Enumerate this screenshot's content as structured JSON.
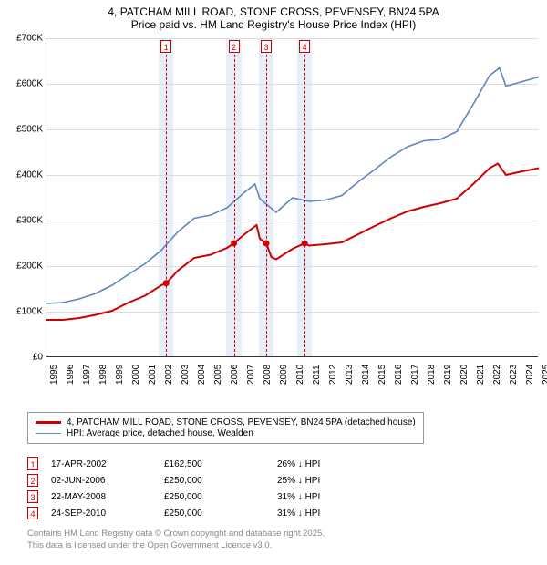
{
  "title_line1": "4, PATCHAM MILL ROAD, STONE CROSS, PEVENSEY, BN24 5PA",
  "title_line2": "Price paid vs. HM Land Registry's House Price Index (HPI)",
  "chart": {
    "type": "line",
    "background_color": "#ffffff",
    "grid_color": "#dddddd",
    "band_color": "#e8eef8",
    "x_axis": {
      "min": 1995,
      "max": 2025,
      "tick_step": 1,
      "label_fontsize": 10
    },
    "y_axis": {
      "min": 0,
      "max": 700000,
      "tick_step": 100000,
      "tick_labels": [
        "£0",
        "£100K",
        "£200K",
        "£300K",
        "£400K",
        "£500K",
        "£600K",
        "£700K"
      ],
      "label_fontsize": 10
    },
    "series": [
      {
        "name": "4, PATCHAM MILL ROAD, STONE CROSS, PEVENSEY, BN24 5PA (detached house)",
        "color": "#cc0000",
        "line_width": 2,
        "points": [
          [
            1995,
            82000
          ],
          [
            1996,
            82000
          ],
          [
            1997,
            86000
          ],
          [
            1998,
            93000
          ],
          [
            1999,
            102000
          ],
          [
            2000,
            120000
          ],
          [
            2001,
            135000
          ],
          [
            2002,
            158000
          ],
          [
            2002.3,
            162500
          ],
          [
            2003,
            190000
          ],
          [
            2004,
            218000
          ],
          [
            2005,
            225000
          ],
          [
            2006,
            240000
          ],
          [
            2006.42,
            250000
          ],
          [
            2007,
            268000
          ],
          [
            2007.8,
            290000
          ],
          [
            2008,
            260000
          ],
          [
            2008.39,
            250000
          ],
          [
            2008.7,
            220000
          ],
          [
            2009,
            215000
          ],
          [
            2010,
            238000
          ],
          [
            2010.73,
            250000
          ],
          [
            2011,
            245000
          ],
          [
            2012,
            248000
          ],
          [
            2013,
            252000
          ],
          [
            2014,
            270000
          ],
          [
            2015,
            288000
          ],
          [
            2016,
            305000
          ],
          [
            2017,
            320000
          ],
          [
            2018,
            330000
          ],
          [
            2019,
            338000
          ],
          [
            2020,
            348000
          ],
          [
            2021,
            380000
          ],
          [
            2022,
            415000
          ],
          [
            2022.5,
            425000
          ],
          [
            2023,
            400000
          ],
          [
            2024,
            408000
          ],
          [
            2025,
            415000
          ]
        ],
        "sale_points": [
          [
            2002.29,
            162500
          ],
          [
            2006.42,
            250000
          ],
          [
            2008.39,
            250000
          ],
          [
            2010.73,
            250000
          ]
        ]
      },
      {
        "name": "HPI: Average price, detached house, Wealden",
        "color": "#5e84c3",
        "line_width": 1.6,
        "points": [
          [
            1995,
            118000
          ],
          [
            1996,
            120000
          ],
          [
            1997,
            128000
          ],
          [
            1998,
            140000
          ],
          [
            1999,
            158000
          ],
          [
            2000,
            182000
          ],
          [
            2001,
            205000
          ],
          [
            2002,
            235000
          ],
          [
            2003,
            275000
          ],
          [
            2004,
            305000
          ],
          [
            2005,
            312000
          ],
          [
            2006,
            328000
          ],
          [
            2007,
            360000
          ],
          [
            2007.7,
            380000
          ],
          [
            2008,
            348000
          ],
          [
            2009,
            318000
          ],
          [
            2010,
            350000
          ],
          [
            2011,
            342000
          ],
          [
            2012,
            345000
          ],
          [
            2013,
            355000
          ],
          [
            2014,
            385000
          ],
          [
            2015,
            412000
          ],
          [
            2016,
            440000
          ],
          [
            2017,
            462000
          ],
          [
            2018,
            475000
          ],
          [
            2019,
            478000
          ],
          [
            2020,
            495000
          ],
          [
            2021,
            555000
          ],
          [
            2022,
            618000
          ],
          [
            2022.6,
            635000
          ],
          [
            2023,
            595000
          ],
          [
            2024,
            605000
          ],
          [
            2025,
            615000
          ]
        ]
      }
    ],
    "markers": [
      {
        "n": "1",
        "year": 2002.29
      },
      {
        "n": "2",
        "year": 2006.42
      },
      {
        "n": "3",
        "year": 2008.39
      },
      {
        "n": "4",
        "year": 2010.73
      }
    ],
    "marker_color": "#cc0000",
    "band_half_width": 0.45
  },
  "legend": {
    "items": [
      {
        "color": "#cc0000",
        "width": 2.5,
        "label": "4, PATCHAM MILL ROAD, STONE CROSS, PEVENSEY, BN24 5PA (detached house)"
      },
      {
        "color": "#5e84c3",
        "width": 1.6,
        "label": "HPI: Average price, detached house, Wealden"
      }
    ]
  },
  "table": {
    "rows": [
      {
        "n": "1",
        "date": "17-APR-2002",
        "price": "£162,500",
        "delta": "26% ↓ HPI"
      },
      {
        "n": "2",
        "date": "02-JUN-2006",
        "price": "£250,000",
        "delta": "25% ↓ HPI"
      },
      {
        "n": "3",
        "date": "22-MAY-2008",
        "price": "£250,000",
        "delta": "31% ↓ HPI"
      },
      {
        "n": "4",
        "date": "24-SEP-2010",
        "price": "£250,000",
        "delta": "31% ↓ HPI"
      }
    ]
  },
  "footer_line1": "Contains HM Land Registry data © Crown copyright and database right 2025.",
  "footer_line2": "This data is licensed under the Open Government Licence v3.0."
}
